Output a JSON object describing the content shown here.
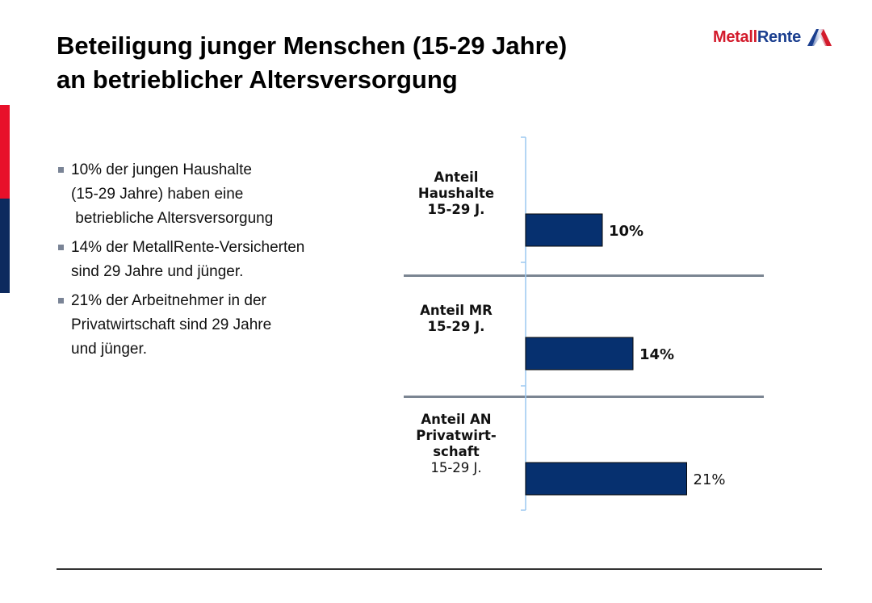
{
  "slide": {
    "title_lines": [
      "Beteiligung junger Menschen (15-29 Jahre)",
      "an betrieblicher Altersversorgung"
    ],
    "logo": {
      "part1": "Metall",
      "part2": "Rente",
      "icon": "metallrente-triangle-logo-icon"
    },
    "accent_colors": {
      "red": "#e8102a",
      "blue": "#0d2a5e"
    },
    "bullets": [
      {
        "lines": [
          "10% der jungen Haushalte",
          "(15-29 Jahre) haben eine",
          " betriebliche Altersversorgung"
        ]
      },
      {
        "lines": [
          "14% der MetallRente-Versicherten",
          "sind 29 Jahre und jünger."
        ]
      },
      {
        "lines": [
          "21% der Arbeitnehmer in der",
          "Privatwirtschaft sind 29 Jahre",
          "und jünger."
        ]
      }
    ]
  },
  "chart_data": {
    "type": "bar",
    "orientation": "horizontal",
    "title": "",
    "xlabel": "",
    "ylabel": "",
    "categories": [
      [
        "Anteil",
        "Haushalte",
        "15-29 J."
      ],
      [
        "Anteil MR",
        "15-29 J."
      ],
      [
        "Anteil AN",
        "Privatwirt-",
        "schaft",
        "15-29 J."
      ]
    ],
    "values": [
      10,
      14,
      21
    ],
    "value_labels": [
      "10%",
      "14%",
      "21%"
    ],
    "unit": "%",
    "xlim": [
      0,
      30
    ],
    "bar_color": "#06306f",
    "axis_color": "#9cc8f0",
    "separator_color": "#7b8592",
    "grid": false,
    "legend": "none"
  }
}
